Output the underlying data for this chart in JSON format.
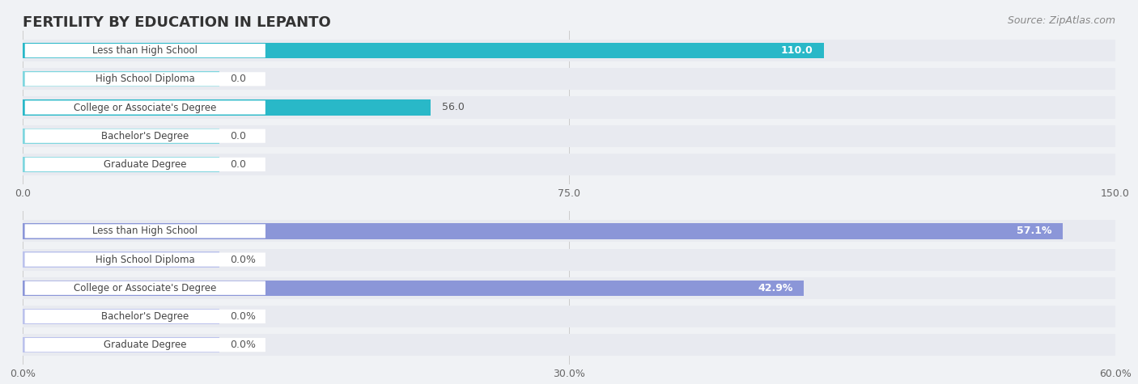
{
  "title": "FERTILITY BY EDUCATION IN LEPANTO",
  "source": "Source: ZipAtlas.com",
  "categories": [
    "Less than High School",
    "High School Diploma",
    "College or Associate's Degree",
    "Bachelor's Degree",
    "Graduate Degree"
  ],
  "chart1": {
    "values": [
      110.0,
      0.0,
      56.0,
      0.0,
      0.0
    ],
    "xlim": [
      0,
      150.0
    ],
    "xticks": [
      0.0,
      75.0,
      150.0
    ],
    "bar_color_main": "#29B8C8",
    "bar_color_zero": "#7FD6DF",
    "label_color": "#555555",
    "value_color_inside": "#ffffff",
    "value_color_outside": "#555555"
  },
  "chart2": {
    "values": [
      57.1,
      0.0,
      42.9,
      0.0,
      0.0
    ],
    "xlim": [
      0,
      60.0
    ],
    "xticks": [
      0.0,
      30.0,
      60.0
    ],
    "xtick_labels": [
      "0.0%",
      "30.0%",
      "60.0%"
    ],
    "bar_color_main": "#8B96D8",
    "bar_color_zero": "#BBC2EC",
    "label_color": "#555555",
    "value_suffix": "%",
    "value_color_inside": "#ffffff",
    "value_color_outside": "#555555"
  },
  "background_color": "#f0f2f5",
  "bar_bg_color": "#e8eaf0",
  "bar_height": 0.55,
  "label_box_color": "#ffffff",
  "title_fontsize": 13,
  "source_fontsize": 9,
  "tick_fontsize": 9,
  "label_fontsize": 9
}
